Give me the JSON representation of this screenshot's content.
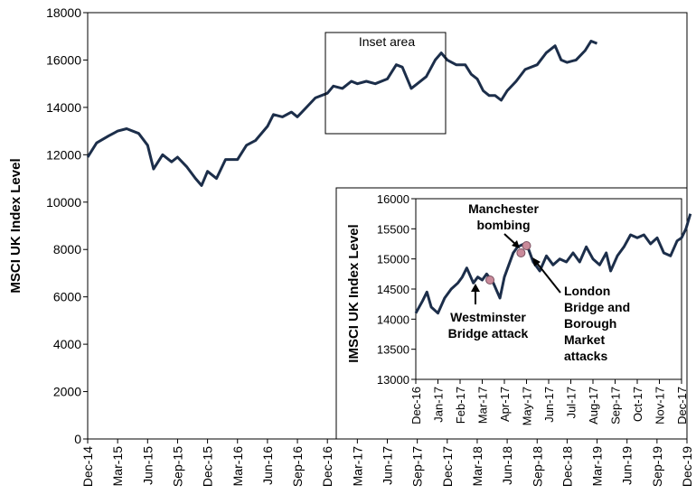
{
  "chart_data": [
    {
      "type": "line",
      "ylabel": "MSCI UK Index Level",
      "xlabel": "",
      "ylim": [
        0,
        18000
      ],
      "y_ticks": [
        0,
        2000,
        4000,
        6000,
        8000,
        10000,
        12000,
        14000,
        16000,
        18000
      ],
      "x_tick_labels": [
        "Dec-14",
        "Mar-15",
        "Jun-15",
        "Sep-15",
        "Dec-15",
        "Mar-16",
        "Jun-16",
        "Sep-16",
        "Dec-16",
        "Mar-17",
        "Jun-17",
        "Sep-17",
        "Dec-17",
        "Mar-18",
        "Jun-18",
        "Sep-18",
        "Dec-18",
        "Mar-19",
        "Jun-19",
        "Sep-19",
        "Dec-19"
      ],
      "series": [
        {
          "color": "#1c2e4a",
          "points": [
            [
              0,
              11900
            ],
            [
              0.3,
              12500
            ],
            [
              0.7,
              12800
            ],
            [
              1.0,
              13000
            ],
            [
              1.3,
              13100
            ],
            [
              1.7,
              12900
            ],
            [
              2.0,
              12400
            ],
            [
              2.2,
              11400
            ],
            [
              2.5,
              12000
            ],
            [
              2.8,
              11700
            ],
            [
              3.0,
              11900
            ],
            [
              3.3,
              11500
            ],
            [
              3.6,
              11000
            ],
            [
              3.8,
              10700
            ],
            [
              4.0,
              11300
            ],
            [
              4.3,
              11000
            ],
            [
              4.6,
              11800
            ],
            [
              5.0,
              11800
            ],
            [
              5.3,
              12400
            ],
            [
              5.6,
              12600
            ],
            [
              6.0,
              13200
            ],
            [
              6.2,
              13700
            ],
            [
              6.5,
              13600
            ],
            [
              6.8,
              13800
            ],
            [
              7.0,
              13600
            ],
            [
              7.3,
              14000
            ],
            [
              7.6,
              14400
            ],
            [
              8.0,
              14600
            ],
            [
              8.2,
              14900
            ],
            [
              8.5,
              14800
            ],
            [
              8.8,
              15100
            ],
            [
              9.0,
              15000
            ],
            [
              9.3,
              15100
            ],
            [
              9.6,
              15000
            ],
            [
              10.0,
              15200
            ],
            [
              10.3,
              15800
            ],
            [
              10.5,
              15700
            ],
            [
              10.8,
              14800
            ],
            [
              11.0,
              15000
            ],
            [
              11.3,
              15300
            ],
            [
              11.6,
              16000
            ],
            [
              11.8,
              16300
            ],
            [
              12.0,
              16000
            ],
            [
              12.3,
              15800
            ],
            [
              12.6,
              15800
            ],
            [
              12.8,
              15400
            ],
            [
              13.0,
              15200
            ],
            [
              13.2,
              14700
            ],
            [
              13.4,
              14500
            ],
            [
              13.6,
              14500
            ],
            [
              13.8,
              14300
            ],
            [
              14.0,
              14700
            ],
            [
              14.3,
              15100
            ],
            [
              14.6,
              15600
            ],
            [
              15.0,
              15800
            ],
            [
              15.3,
              16300
            ],
            [
              15.6,
              16600
            ],
            [
              15.8,
              16000
            ],
            [
              16.0,
              15900
            ],
            [
              16.3,
              16000
            ],
            [
              16.6,
              16400
            ],
            [
              16.8,
              16800
            ],
            [
              17.0,
              16700
            ]
          ]
        }
      ],
      "annotations": [
        "Inset area"
      ]
    },
    {
      "type": "line",
      "ylabel": "IMSCI UK Index Level",
      "ylim": [
        13000,
        16000
      ],
      "y_ticks": [
        13000,
        13500,
        14000,
        14500,
        15000,
        15500,
        16000
      ],
      "x_tick_labels": [
        "Dec-16",
        "Jan-17",
        "Feb-17",
        "Mar-17",
        "Apr-17",
        "May-17",
        "Jun-17",
        "Jul-17",
        "Aug-17",
        "Sep-17",
        "Oct-17",
        "Nov-17",
        "Dec-17"
      ],
      "series": [
        {
          "color": "#1c2e4a",
          "points": [
            [
              0,
              14100
            ],
            [
              0.3,
              14300
            ],
            [
              0.5,
              14450
            ],
            [
              0.7,
              14200
            ],
            [
              1.0,
              14100
            ],
            [
              1.3,
              14350
            ],
            [
              1.6,
              14500
            ],
            [
              1.9,
              14600
            ],
            [
              2.1,
              14700
            ],
            [
              2.3,
              14850
            ],
            [
              2.6,
              14600
            ],
            [
              2.8,
              14700
            ],
            [
              3.0,
              14650
            ],
            [
              3.2,
              14750
            ],
            [
              3.5,
              14600
            ],
            [
              3.8,
              14350
            ],
            [
              4.0,
              14700
            ],
            [
              4.2,
              14900
            ],
            [
              4.4,
              15100
            ],
            [
              4.6,
              15200
            ],
            [
              4.9,
              15250
            ],
            [
              5.1,
              15150
            ],
            [
              5.3,
              14950
            ],
            [
              5.6,
              14800
            ],
            [
              5.9,
              15050
            ],
            [
              6.2,
              14900
            ],
            [
              6.5,
              15000
            ],
            [
              6.8,
              14950
            ],
            [
              7.1,
              15100
            ],
            [
              7.4,
              14950
            ],
            [
              7.7,
              15200
            ],
            [
              8.0,
              15000
            ],
            [
              8.3,
              14900
            ],
            [
              8.6,
              15100
            ],
            [
              8.8,
              14800
            ],
            [
              9.1,
              15050
            ],
            [
              9.4,
              15200
            ],
            [
              9.7,
              15400
            ],
            [
              10.0,
              15350
            ],
            [
              10.3,
              15400
            ],
            [
              10.6,
              15250
            ],
            [
              10.9,
              15350
            ],
            [
              11.2,
              15100
            ],
            [
              11.5,
              15050
            ],
            [
              11.8,
              15300
            ],
            [
              12.0,
              15350
            ],
            [
              12.2,
              15500
            ],
            [
              12.4,
              15750
            ]
          ]
        }
      ],
      "event_points": [
        {
          "x": 3.35,
          "y": 14650
        },
        {
          "x": 4.75,
          "y": 15100
        },
        {
          "x": 5.0,
          "y": 15220
        }
      ],
      "annotations": [
        {
          "lines": [
            "Westminster",
            "Bridge attack"
          ]
        },
        {
          "lines": [
            "Manchester",
            "bombing"
          ]
        },
        {
          "lines": [
            "London",
            "Bridge and",
            "Borough",
            "Market",
            "attacks"
          ]
        }
      ]
    }
  ]
}
